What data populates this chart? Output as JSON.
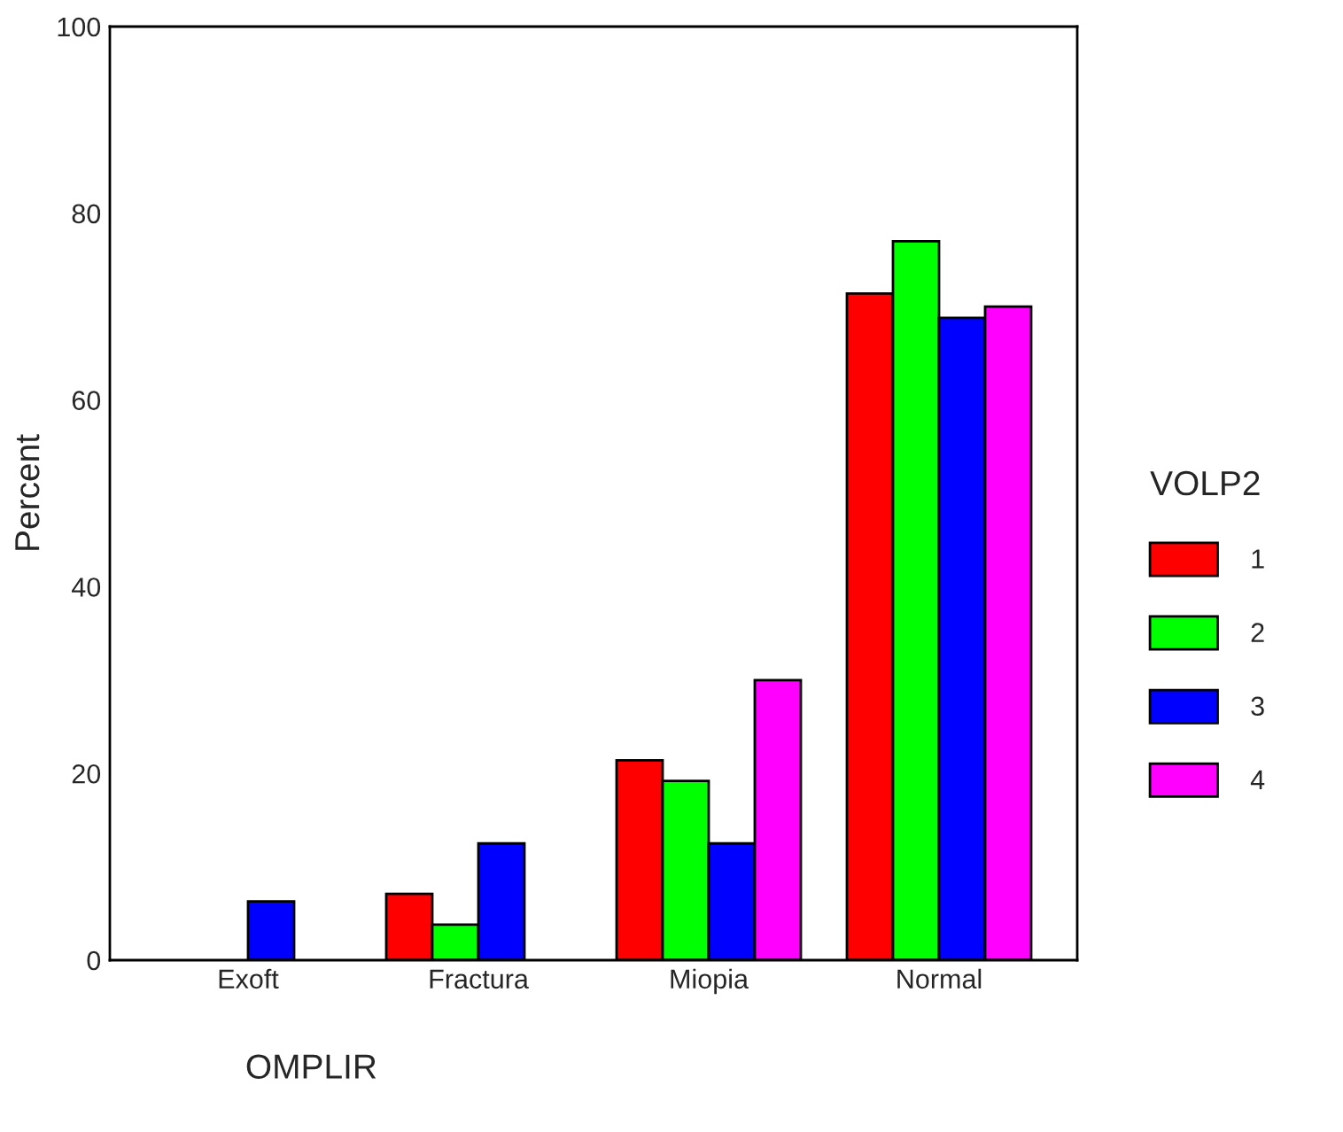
{
  "chart_data": {
    "type": "bar",
    "xlabel": "OMPLIR",
    "ylabel": "Percent",
    "legend_title": "VOLP2",
    "categories": [
      "Exoft",
      "Fractura",
      "Miopia",
      "Normal"
    ],
    "series": [
      {
        "name": "1",
        "color": "#ff0000",
        "values": [
          null,
          7.1,
          21.4,
          71.4
        ]
      },
      {
        "name": "2",
        "color": "#00ff00",
        "values": [
          null,
          3.8,
          19.2,
          77.0
        ]
      },
      {
        "name": "3",
        "color": "#0000ff",
        "values": [
          6.3,
          12.5,
          12.5,
          68.8
        ]
      },
      {
        "name": "4",
        "color": "#ff00ff",
        "values": [
          null,
          null,
          30.0,
          70.0
        ]
      }
    ],
    "ylim": [
      0,
      100
    ],
    "yticks": [
      0,
      20,
      40,
      60,
      80,
      100
    ],
    "legend": "right",
    "grid": false
  }
}
